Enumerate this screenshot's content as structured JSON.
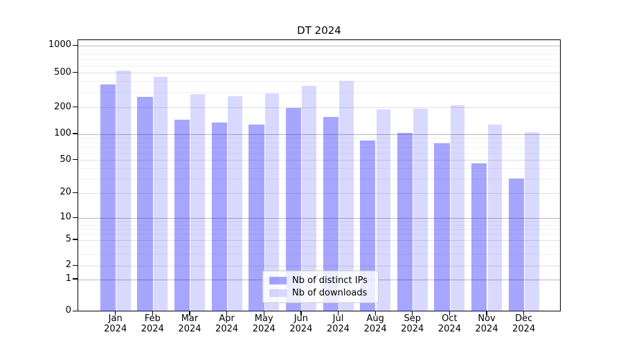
{
  "chart_data": {
    "type": "bar",
    "title": "DT 2024",
    "yscale": "log-like (symlog, 0 shown at baseline)",
    "ylim": [
      0,
      1000
    ],
    "grid": true,
    "legend_position": "lower center",
    "y_ticks": [
      0,
      1,
      2,
      5,
      10,
      20,
      50,
      100,
      200,
      500,
      1000
    ],
    "categories": [
      "Jan 2024",
      "Feb 2024",
      "Mar 2024",
      "Apr 2024",
      "May 2024",
      "Jun 2024",
      "Jul 2024",
      "Aug 2024",
      "Sep 2024",
      "Oct 2024",
      "Nov 2024",
      "Dec 2024"
    ],
    "series": [
      {
        "name": "Nb of distinct IPs",
        "color_hex": "#a6a6ff",
        "color": "rgba(0,0,255,0.35)",
        "values": [
          370,
          268,
          146,
          137,
          130,
          200,
          157,
          84,
          103,
          79,
          46,
          30
        ]
      },
      {
        "name": "Nb of downloads",
        "color_hex": "#d9d9ff",
        "color": "rgba(0,0,255,0.15)",
        "values": [
          535,
          455,
          287,
          273,
          290,
          355,
          410,
          193,
          194,
          216,
          128,
          105
        ]
      }
    ]
  }
}
